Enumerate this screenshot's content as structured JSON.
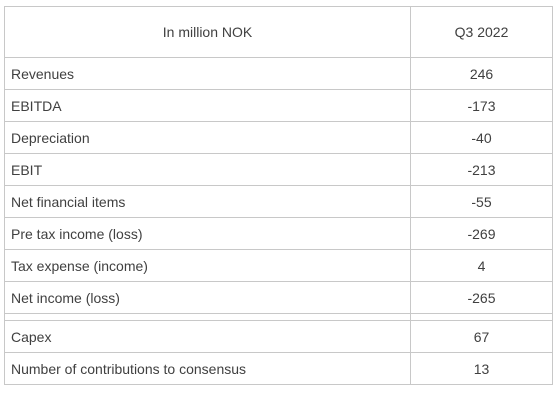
{
  "table": {
    "header": {
      "label_col": "In million NOK",
      "value_col": "Q3 2022"
    },
    "rows": [
      {
        "label": "Revenues",
        "value": "246"
      },
      {
        "label": "EBITDA",
        "value": "-173"
      },
      {
        "label": "Depreciation",
        "value": "-40"
      },
      {
        "label": "EBIT",
        "value": "-213"
      },
      {
        "label": "Net financial items",
        "value": "-55"
      },
      {
        "label": "Pre tax income (loss)",
        "value": "-269"
      },
      {
        "label": "Tax expense (income)",
        "value": "4"
      },
      {
        "label": "Net income (loss)",
        "value": "-265"
      }
    ],
    "extra_rows": [
      {
        "label": "Capex",
        "value": "67"
      },
      {
        "label": "Number of contributions to consensus",
        "value": "13"
      }
    ]
  }
}
